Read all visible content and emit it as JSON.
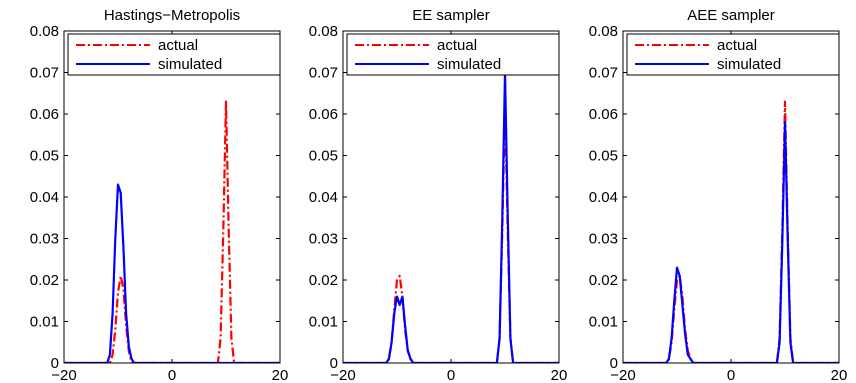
{
  "chart_data": [
    {
      "type": "line",
      "title": "Hastings−Metropolis",
      "xlim": [
        -20,
        20
      ],
      "ylim": [
        0,
        0.08
      ],
      "xticks": [
        -20,
        0,
        20
      ],
      "xtick_labels": [
        "−20",
        "0",
        "20"
      ],
      "yticks": [
        0,
        0.01,
        0.02,
        0.03,
        0.04,
        0.05,
        0.06,
        0.07,
        0.08
      ],
      "ytick_labels": [
        "0",
        "0.01",
        "0.02",
        "0.03",
        "0.04",
        "0.05",
        "0.06",
        "0.07",
        "0.08"
      ],
      "grid": false,
      "legend": "top",
      "series": [
        {
          "name": "actual",
          "color": "#ff0000",
          "style": "dash-dot",
          "x": [
            -20,
            -11.5,
            -11,
            -10.5,
            -10,
            -9.5,
            -9,
            -8.5,
            -8,
            -7.5,
            -7,
            8.5,
            9,
            9.5,
            10,
            10.5,
            11,
            11.5,
            20
          ],
          "y": [
            0,
            0,
            0.002,
            0.008,
            0.017,
            0.021,
            0.018,
            0.009,
            0.003,
            0,
            0,
            0,
            0.006,
            0.032,
            0.063,
            0.032,
            0.006,
            0,
            0
          ]
        },
        {
          "name": "simulated",
          "color": "#0000ff",
          "style": "solid",
          "x": [
            -20,
            -12,
            -11.5,
            -11,
            -10.5,
            -10,
            -9.5,
            -9,
            -8.5,
            -8,
            -7.5,
            -7,
            -6.5,
            20
          ],
          "y": [
            0,
            0,
            0.002,
            0.012,
            0.03,
            0.043,
            0.041,
            0.028,
            0.012,
            0.004,
            0.001,
            0,
            0,
            0
          ]
        }
      ]
    },
    {
      "type": "line",
      "title": "EE sampler",
      "xlim": [
        -20,
        20
      ],
      "ylim": [
        0,
        0.08
      ],
      "xticks": [
        -20,
        0,
        20
      ],
      "xtick_labels": [
        "−20",
        "0",
        "20"
      ],
      "yticks": [
        0,
        0.01,
        0.02,
        0.03,
        0.04,
        0.05,
        0.06,
        0.07,
        0.08
      ],
      "ytick_labels": [
        "0",
        "0.01",
        "0.02",
        "0.03",
        "0.04",
        "0.05",
        "0.06",
        "0.07",
        "0.08"
      ],
      "grid": false,
      "legend": "top",
      "series": [
        {
          "name": "actual",
          "color": "#ff0000",
          "style": "dash-dot",
          "x": [
            -20,
            -12,
            -11.5,
            -11,
            -10.5,
            -10,
            -9.5,
            -9,
            -8.5,
            -8,
            -7.5,
            -7,
            8.5,
            9,
            9.5,
            10,
            10.5,
            11,
            11.5,
            20
          ],
          "y": [
            0,
            0,
            0.001,
            0.005,
            0.013,
            0.02,
            0.021,
            0.016,
            0.008,
            0.003,
            0.001,
            0,
            0,
            0.006,
            0.032,
            0.063,
            0.032,
            0.006,
            0,
            0
          ]
        },
        {
          "name": "simulated",
          "color": "#0000ff",
          "style": "solid",
          "x": [
            -20,
            -12,
            -11.5,
            -11,
            -10.5,
            -10,
            -9.5,
            -9,
            -8.5,
            -8,
            -7.5,
            -7,
            8.5,
            9,
            9.5,
            10,
            10.5,
            11,
            11.5,
            20
          ],
          "y": [
            0,
            0,
            0.001,
            0.005,
            0.012,
            0.016,
            0.014,
            0.016,
            0.009,
            0.003,
            0.001,
            0,
            0,
            0.006,
            0.035,
            0.07,
            0.036,
            0.006,
            0,
            0
          ]
        }
      ]
    },
    {
      "type": "line",
      "title": "AEE sampler",
      "xlim": [
        -20,
        20
      ],
      "ylim": [
        0,
        0.08
      ],
      "xticks": [
        -20,
        0,
        20
      ],
      "xtick_labels": [
        "−20",
        "0",
        "20"
      ],
      "yticks": [
        0,
        0.01,
        0.02,
        0.03,
        0.04,
        0.05,
        0.06,
        0.07,
        0.08
      ],
      "ytick_labels": [
        "0",
        "0.01",
        "0.02",
        "0.03",
        "0.04",
        "0.05",
        "0.06",
        "0.07",
        "0.08"
      ],
      "grid": false,
      "legend": "top",
      "series": [
        {
          "name": "actual",
          "color": "#ff0000",
          "style": "dash-dot",
          "x": [
            -20,
            -12,
            -11.5,
            -11,
            -10.5,
            -10,
            -9.5,
            -9,
            -8.5,
            -8,
            -7.5,
            -7,
            8.5,
            9,
            9.5,
            10,
            10.5,
            11,
            11.5,
            20
          ],
          "y": [
            0,
            0,
            0.001,
            0.005,
            0.013,
            0.02,
            0.021,
            0.016,
            0.008,
            0.003,
            0.001,
            0,
            0,
            0.006,
            0.032,
            0.063,
            0.032,
            0.006,
            0,
            0
          ]
        },
        {
          "name": "simulated",
          "color": "#0000ff",
          "style": "solid",
          "x": [
            -20,
            -12,
            -11.5,
            -11,
            -10.5,
            -10,
            -9.5,
            -9,
            -8.5,
            -8,
            -7.5,
            -7,
            8.5,
            9,
            9.5,
            10,
            10.5,
            11,
            11.5,
            20
          ],
          "y": [
            0,
            0,
            0.001,
            0.006,
            0.015,
            0.023,
            0.021,
            0.014,
            0.007,
            0.002,
            0.001,
            0,
            0,
            0.005,
            0.029,
            0.058,
            0.03,
            0.005,
            0,
            0
          ]
        }
      ]
    }
  ]
}
